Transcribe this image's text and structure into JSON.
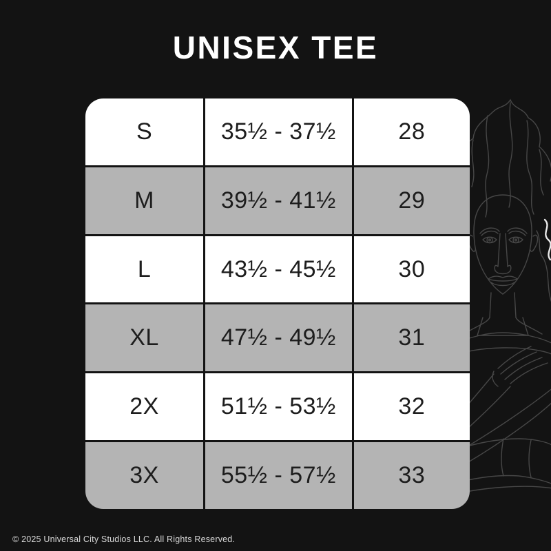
{
  "title": "UNISEX TEE",
  "table": {
    "rows": [
      {
        "size": "S",
        "chest": "35½ - 37½",
        "length": "28"
      },
      {
        "size": "M",
        "chest": "39½ - 41½",
        "length": "29"
      },
      {
        "size": "L",
        "chest": "43½ - 45½",
        "length": "30"
      },
      {
        "size": "XL",
        "chest": "47½ - 49½",
        "length": "31"
      },
      {
        "size": "2X",
        "chest": "51½ - 53½",
        "length": "32"
      },
      {
        "size": "3X",
        "chest": "55½ - 57½",
        "length": "33"
      }
    ]
  },
  "chart_data": {
    "type": "table",
    "title": "UNISEX TEE",
    "rows": [
      [
        "S",
        "35½ - 37½",
        "28"
      ],
      [
        "M",
        "39½ - 41½",
        "29"
      ],
      [
        "L",
        "43½ - 45½",
        "30"
      ],
      [
        "XL",
        "47½ - 49½",
        "31"
      ],
      [
        "2X",
        "51½ - 53½",
        "32"
      ],
      [
        "3X",
        "55½ - 57½",
        "33"
      ]
    ],
    "layout": "alternating white/gray rows, black column dividers, rounded corners, no header row"
  },
  "footer": {
    "copyright": "© 2025 Universal City Studios LLC. All Rights Reserved."
  },
  "artwork": {
    "name": "bride-of-frankenstein-line-art"
  },
  "colors": {
    "background": "#131313",
    "row_white": "#ffffff",
    "row_gray": "#b4b4b4",
    "divider": "#131313",
    "table_text": "#1d1d1d",
    "title_text": "#ffffff",
    "copyright_text": "#d9d9d9",
    "artwork_line": "#474747",
    "artwork_highlight": "#e9e9e9"
  }
}
